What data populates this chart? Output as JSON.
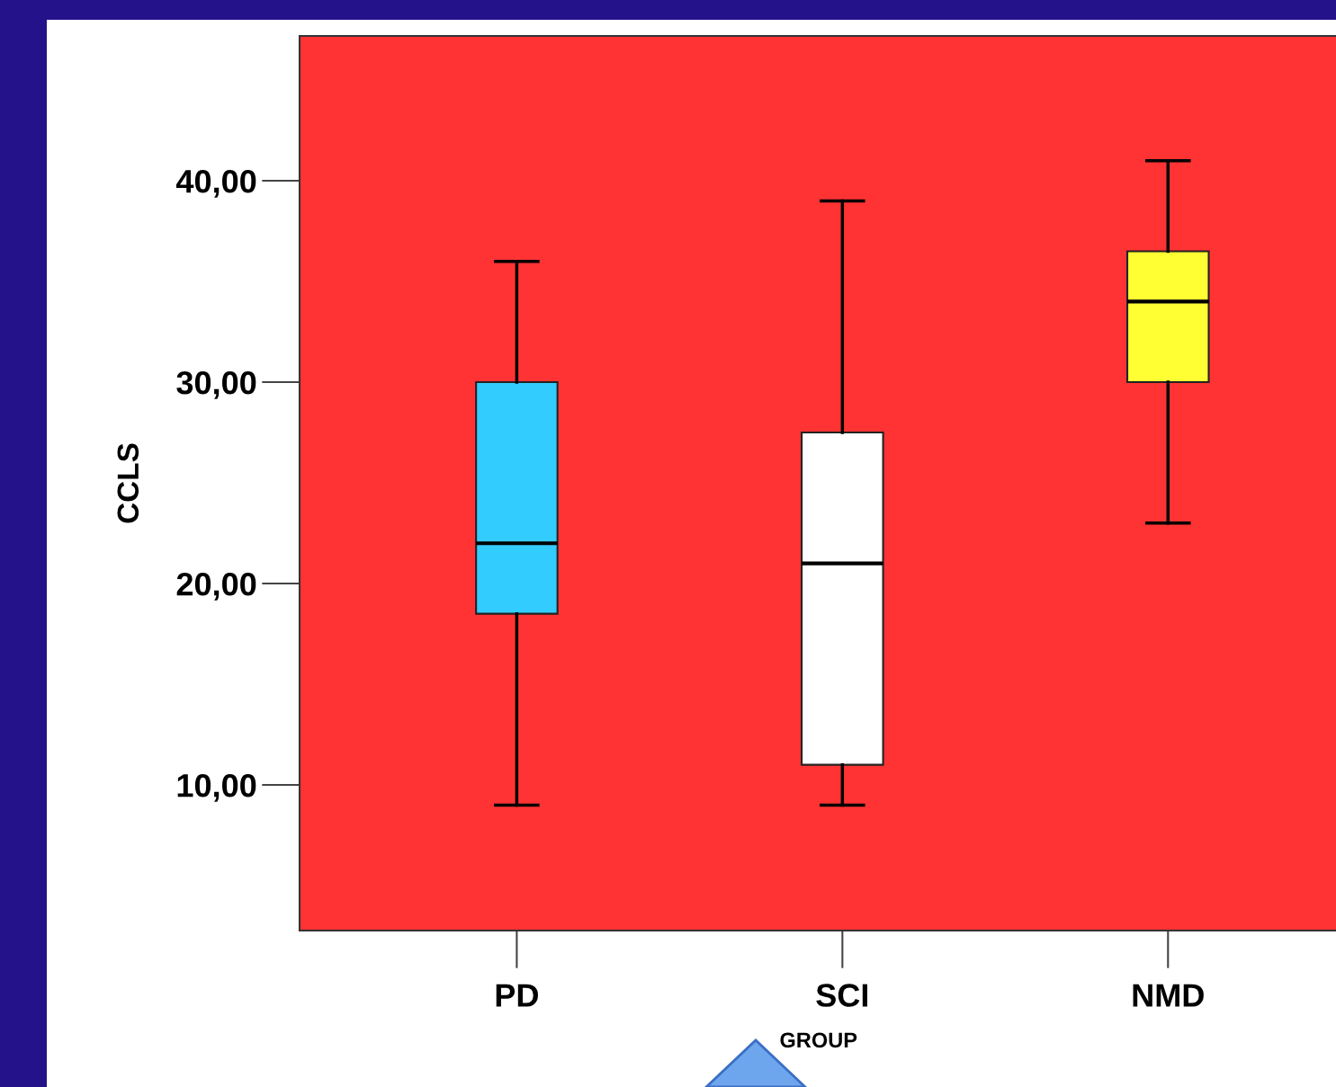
{
  "chart_data": {
    "type": "box",
    "xlabel": "GROUP",
    "ylabel": "CCLS",
    "categories": [
      "PD",
      "SCI",
      "NMD"
    ],
    "boxes": [
      {
        "low": 9,
        "q1": 18.5,
        "median": 22,
        "q3": 30,
        "high": 36
      },
      {
        "low": 9,
        "q1": 11,
        "median": 21,
        "q3": 27.5,
        "high": 39
      },
      {
        "low": 23,
        "q1": 30,
        "median": 34,
        "q3": 36.5,
        "high": 41
      }
    ],
    "colors": [
      "#33ccff",
      "#ffffff",
      "#ffff33"
    ],
    "ylim": [
      2.77,
      47.19
    ],
    "yticks": [
      {
        "value": 10,
        "label": "10,00"
      },
      {
        "value": 20,
        "label": "20,00"
      },
      {
        "value": 30,
        "label": "30,00"
      },
      {
        "value": 40,
        "label": "40,00"
      }
    ],
    "grid": false
  }
}
